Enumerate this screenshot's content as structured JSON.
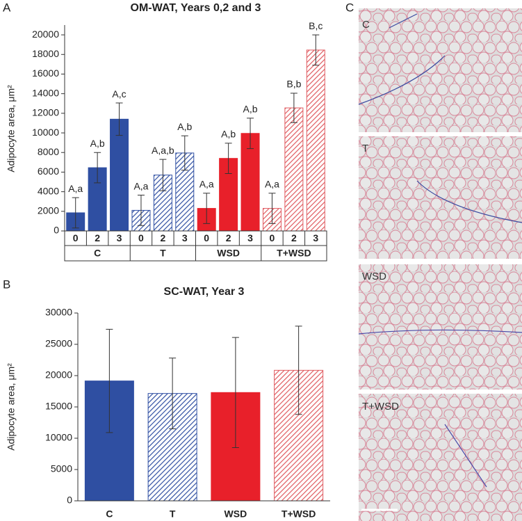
{
  "panel_labels": [
    "A",
    "B",
    "C"
  ],
  "micrograph_labels": [
    "C",
    "T",
    "WSD",
    "T+WSD"
  ],
  "chart_data": [
    {
      "type": "bar",
      "title": "OM-WAT, Years 0,2 and 3",
      "ylabel": "Adipocyte area, μm²",
      "categories": [
        "0",
        "2",
        "3",
        "0",
        "2",
        "3",
        "0",
        "2",
        "3",
        "0",
        "2",
        "3"
      ],
      "groups": [
        "C",
        "T",
        "WSD",
        "T+WSD"
      ],
      "colors": [
        "#2f4fa2",
        "#2f4fa2",
        "#e8202a",
        "#e05a5f"
      ],
      "hatch": [
        false,
        true,
        false,
        true
      ],
      "values": [
        1850,
        6450,
        11400,
        2100,
        5700,
        7950,
        2300,
        7400,
        9950,
        2300,
        12550,
        18450
      ],
      "errors": [
        1550,
        1550,
        1650,
        1550,
        1600,
        1750,
        1550,
        1550,
        1550,
        1550,
        1500,
        1550
      ],
      "annotations": [
        "A,a",
        "A,b",
        "A,c",
        "A,a",
        "A,a,b",
        "A,b",
        "A,a",
        "A,b",
        "A,b",
        "A,a",
        "B,b",
        "B,c"
      ],
      "ylim": [
        0,
        21000
      ],
      "yticks": [
        0,
        2000,
        4000,
        6000,
        8000,
        10000,
        12000,
        14000,
        16000,
        18000,
        20000
      ]
    },
    {
      "type": "bar",
      "title": "SC-WAT, Year 3",
      "ylabel": "Adipocyte area, μm²",
      "categories": [
        "C",
        "T",
        "WSD",
        "T+WSD"
      ],
      "colors": [
        "#2f4fa2",
        "#2f4fa2",
        "#e8202a",
        "#e05a5f"
      ],
      "hatch": [
        false,
        true,
        false,
        true
      ],
      "values": [
        19150,
        17150,
        17300,
        20850
      ],
      "errors": [
        8250,
        5650,
        8800,
        7050
      ],
      "ylim": [
        0,
        30000
      ],
      "yticks": [
        0,
        5000,
        10000,
        15000,
        20000,
        25000,
        30000
      ]
    }
  ]
}
